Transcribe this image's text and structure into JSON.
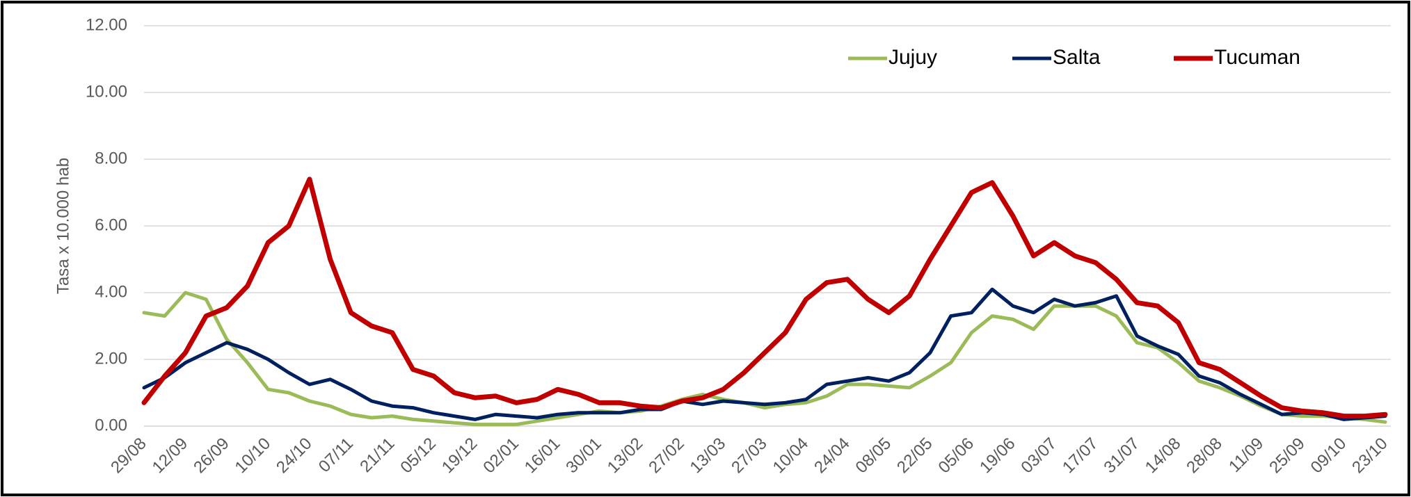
{
  "chart_data": {
    "type": "line",
    "y_axis_label": "Tasa x 10.000 hab",
    "categories": [
      "29/08",
      null,
      "12/09",
      null,
      "26/09",
      null,
      "10/10",
      null,
      "24/10",
      null,
      "07/11",
      null,
      "21/11",
      null,
      "05/12",
      null,
      "19/12",
      null,
      "02/01",
      null,
      "16/01",
      null,
      "30/01",
      null,
      "13/02",
      null,
      "27/02",
      null,
      "13/03",
      null,
      "27/03",
      null,
      "10/04",
      null,
      "24/04",
      null,
      "08/05",
      null,
      "22/05",
      null,
      "05/06",
      null,
      "19/06",
      null,
      "03/07",
      null,
      "17/07",
      null,
      "31/07",
      null,
      "14/08",
      null,
      "28/08",
      null,
      "11/09",
      null,
      "25/09",
      null,
      "09/10",
      null,
      "23/10"
    ],
    "series": [
      {
        "name": "Jujuy",
        "color": "#9bbb59",
        "values": [
          3.4,
          3.3,
          4.0,
          3.8,
          2.6,
          1.9,
          1.1,
          1.0,
          0.75,
          0.6,
          0.35,
          0.25,
          0.3,
          0.2,
          0.15,
          0.1,
          0.05,
          0.05,
          0.05,
          0.15,
          0.25,
          0.35,
          0.45,
          0.4,
          0.45,
          0.6,
          0.8,
          0.95,
          0.8,
          0.7,
          0.55,
          0.65,
          0.7,
          0.9,
          1.25,
          1.25,
          1.2,
          1.15,
          1.5,
          1.9,
          2.8,
          3.3,
          3.2,
          2.9,
          3.6,
          3.6,
          3.6,
          3.3,
          2.5,
          2.35,
          1.9,
          1.35,
          1.15,
          0.9,
          0.6,
          0.35,
          0.3,
          0.3,
          0.25,
          0.2,
          0.12
        ]
      },
      {
        "name": "Salta",
        "color": "#002060",
        "values": [
          1.15,
          1.45,
          1.9,
          2.2,
          2.5,
          2.3,
          2.0,
          1.6,
          1.25,
          1.4,
          1.1,
          0.75,
          0.6,
          0.55,
          0.4,
          0.3,
          0.2,
          0.35,
          0.3,
          0.25,
          0.35,
          0.4,
          0.4,
          0.4,
          0.5,
          0.5,
          0.75,
          0.65,
          0.75,
          0.7,
          0.65,
          0.7,
          0.8,
          1.25,
          1.35,
          1.45,
          1.35,
          1.6,
          2.2,
          3.3,
          3.4,
          4.1,
          3.6,
          3.4,
          3.8,
          3.6,
          3.7,
          3.9,
          2.7,
          2.4,
          2.15,
          1.5,
          1.3,
          0.95,
          0.65,
          0.35,
          0.4,
          0.35,
          0.2,
          0.25,
          0.3
        ]
      },
      {
        "name": "Tucuman",
        "color": "#c00000",
        "values": [
          0.7,
          1.5,
          2.2,
          3.3,
          3.55,
          4.2,
          5.5,
          6.0,
          7.4,
          5.0,
          3.4,
          3.0,
          2.8,
          1.7,
          1.5,
          1.0,
          0.85,
          0.9,
          0.7,
          0.8,
          1.1,
          0.95,
          0.7,
          0.7,
          0.6,
          0.55,
          0.75,
          0.85,
          1.1,
          1.6,
          2.2,
          2.8,
          3.8,
          4.3,
          4.4,
          3.8,
          3.4,
          3.9,
          5.0,
          6.0,
          7.0,
          7.3,
          6.3,
          5.1,
          5.5,
          5.1,
          4.9,
          4.4,
          3.7,
          3.6,
          3.1,
          1.9,
          1.7,
          1.3,
          0.9,
          0.55,
          0.45,
          0.4,
          0.3,
          0.3,
          0.35
        ]
      }
    ],
    "ylim": [
      0,
      12
    ],
    "yticks": [
      {
        "value": 0,
        "label": "0.00"
      },
      {
        "value": 2,
        "label": "2.00"
      },
      {
        "value": 4,
        "label": "4.00"
      },
      {
        "value": 6,
        "label": "6.00"
      },
      {
        "value": 8,
        "label": "8.00"
      },
      {
        "value": 10,
        "label": "10.00"
      },
      {
        "value": 12,
        "label": "12.00"
      }
    ],
    "grid": true,
    "legend": "top-right"
  }
}
